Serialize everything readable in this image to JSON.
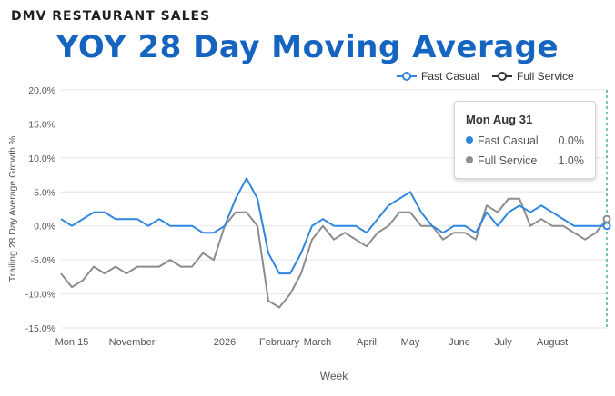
{
  "header": {
    "kicker": "DMV RESTAURANT SALES",
    "title": "YOY 28 Day Moving Average"
  },
  "tooltip": {
    "title": "Mon Aug 31",
    "rows": [
      {
        "label": "Fast Casual",
        "value": "0.0%"
      },
      {
        "label": "Full Service",
        "value": "1.0%"
      }
    ]
  },
  "colors": {
    "fast_casual": "#2e86de",
    "full_service": "#8c8c8c",
    "title": "#1565c0",
    "marker_line": "#1a9e7a"
  },
  "chart_data": {
    "type": "line",
    "title": "YOY 28 Day Moving Average",
    "xlabel": "Week",
    "ylabel": "Trailing 28 Day Average Growth %",
    "ylim": [
      -15,
      20
    ],
    "y_ticks": [
      "-15.0%",
      "-10.0%",
      "-5.0%",
      "0.0%",
      "5.0%",
      "10.0%",
      "15.0%",
      "20.0%"
    ],
    "y_tick_values": [
      -15,
      -10,
      -5,
      0,
      5,
      10,
      15,
      20
    ],
    "x_tick_labels": [
      "Mon 15",
      "November",
      "2026",
      "February",
      "March",
      "April",
      "May",
      "June",
      "July",
      "August"
    ],
    "x_tick_index": [
      1,
      6.5,
      15,
      20,
      23.5,
      28,
      32,
      36.5,
      40.5,
      45
    ],
    "grid": true,
    "legend_position": "top-right",
    "series": [
      {
        "name": "Fast Casual",
        "values": [
          1,
          0,
          1,
          2,
          2,
          1,
          1,
          1,
          0,
          1,
          0,
          0,
          0,
          -1,
          -1,
          0,
          4,
          7,
          4,
          -4,
          -7,
          -7,
          -4,
          0,
          1,
          0,
          0,
          0,
          -1,
          1,
          3,
          4,
          5,
          2,
          0,
          -1,
          0,
          0,
          -1,
          2,
          0,
          2,
          3,
          2,
          3,
          2,
          1,
          0,
          0,
          0,
          0
        ]
      },
      {
        "name": "Full Service",
        "values": [
          -7,
          -9,
          -8,
          -6,
          -7,
          -6,
          -7,
          -6,
          -6,
          -6,
          -5,
          -6,
          -6,
          -4,
          -5,
          0,
          2,
          2,
          0,
          -11,
          -12,
          -10,
          -7,
          -2,
          0,
          -2,
          -1,
          -2,
          -3,
          -1,
          0,
          2,
          2,
          0,
          0,
          -2,
          -1,
          -1,
          -2,
          3,
          2,
          4,
          4,
          0,
          1,
          0,
          0,
          -1,
          -2,
          -1,
          1
        ]
      }
    ]
  }
}
